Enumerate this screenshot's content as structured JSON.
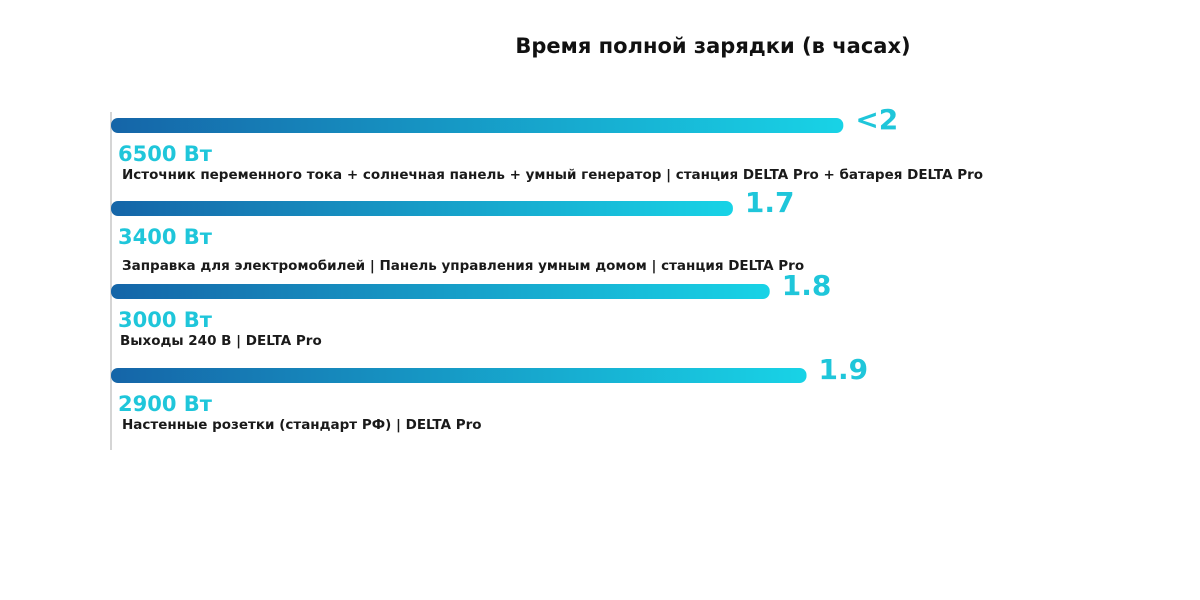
{
  "chart_data": {
    "type": "bar",
    "orientation": "horizontal",
    "title": "Время полной зарядки (в часах)",
    "categories": [
      "Источник переменного тока + солнечная панель + умный генератор | станция DELTA Pro + батарея DELTA Pro",
      "Заправка для электромобилей | Панель управления умным домом | станция DELTA Pro",
      "Выходы 240 В | DELTA Pro",
      "Настенные розетки (стандарт РФ) | DELTA Pro"
    ],
    "power_labels": [
      "6500 Вт",
      "3400 Вт",
      "3000 Вт",
      "2900 Вт"
    ],
    "values": [
      2,
      1.7,
      1.8,
      1.9
    ],
    "value_labels": [
      "<2",
      "1.7",
      "1.8",
      "1.9"
    ],
    "gradient": [
      "#1565a8",
      "#18d3e6"
    ],
    "legend": "none",
    "grid": false
  }
}
